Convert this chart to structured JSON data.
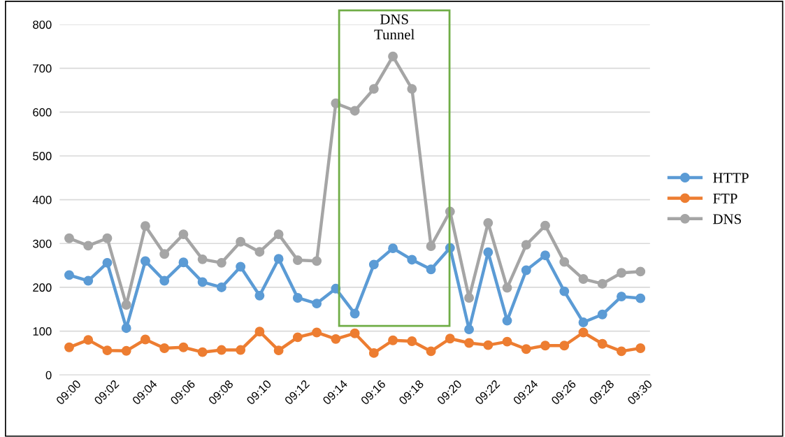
{
  "chart_data": {
    "type": "line",
    "categories": [
      "09:00",
      null,
      "09:02",
      null,
      "09:04",
      null,
      "09:06",
      null,
      "09:08",
      null,
      "09:10",
      null,
      "09:12",
      null,
      "09:14",
      null,
      "09:16",
      null,
      "09:18",
      null,
      "09:20",
      null,
      "09:22",
      null,
      "09:24",
      null,
      "09:26",
      null,
      "09:28",
      null,
      "09:30"
    ],
    "series": [
      {
        "name": "HTTP",
        "color": "#5b9bd5",
        "values": [
          228,
          215,
          256,
          107,
          260,
          215,
          257,
          212,
          200,
          247,
          181,
          265,
          176,
          163,
          197,
          140,
          252,
          289,
          263,
          241,
          290,
          104,
          280,
          124,
          239,
          273,
          191,
          120,
          138,
          179,
          175
        ]
      },
      {
        "name": "FTP",
        "color": "#ed7d31",
        "values": [
          63,
          80,
          56,
          55,
          81,
          61,
          63,
          52,
          57,
          57,
          99,
          56,
          86,
          97,
          82,
          95,
          50,
          79,
          77,
          54,
          83,
          73,
          68,
          76,
          59,
          67,
          67,
          97,
          71,
          54,
          61
        ]
      },
      {
        "name": "DNS",
        "color": "#a5a5a5",
        "values": [
          312,
          295,
          312,
          160,
          340,
          276,
          321,
          264,
          256,
          304,
          281,
          321,
          262,
          260,
          620,
          603,
          653,
          727,
          653,
          294,
          373,
          176,
          347,
          199,
          297,
          341,
          258,
          219,
          208,
          233,
          236
        ]
      }
    ],
    "ylim": [
      0,
      800
    ],
    "yticks": [
      0,
      100,
      200,
      300,
      400,
      500,
      600,
      700,
      800
    ],
    "grid": "y",
    "legend": "right",
    "marker": "circle",
    "line_style": "solid",
    "annotations": [
      "DNS\nTunnel"
    ]
  }
}
